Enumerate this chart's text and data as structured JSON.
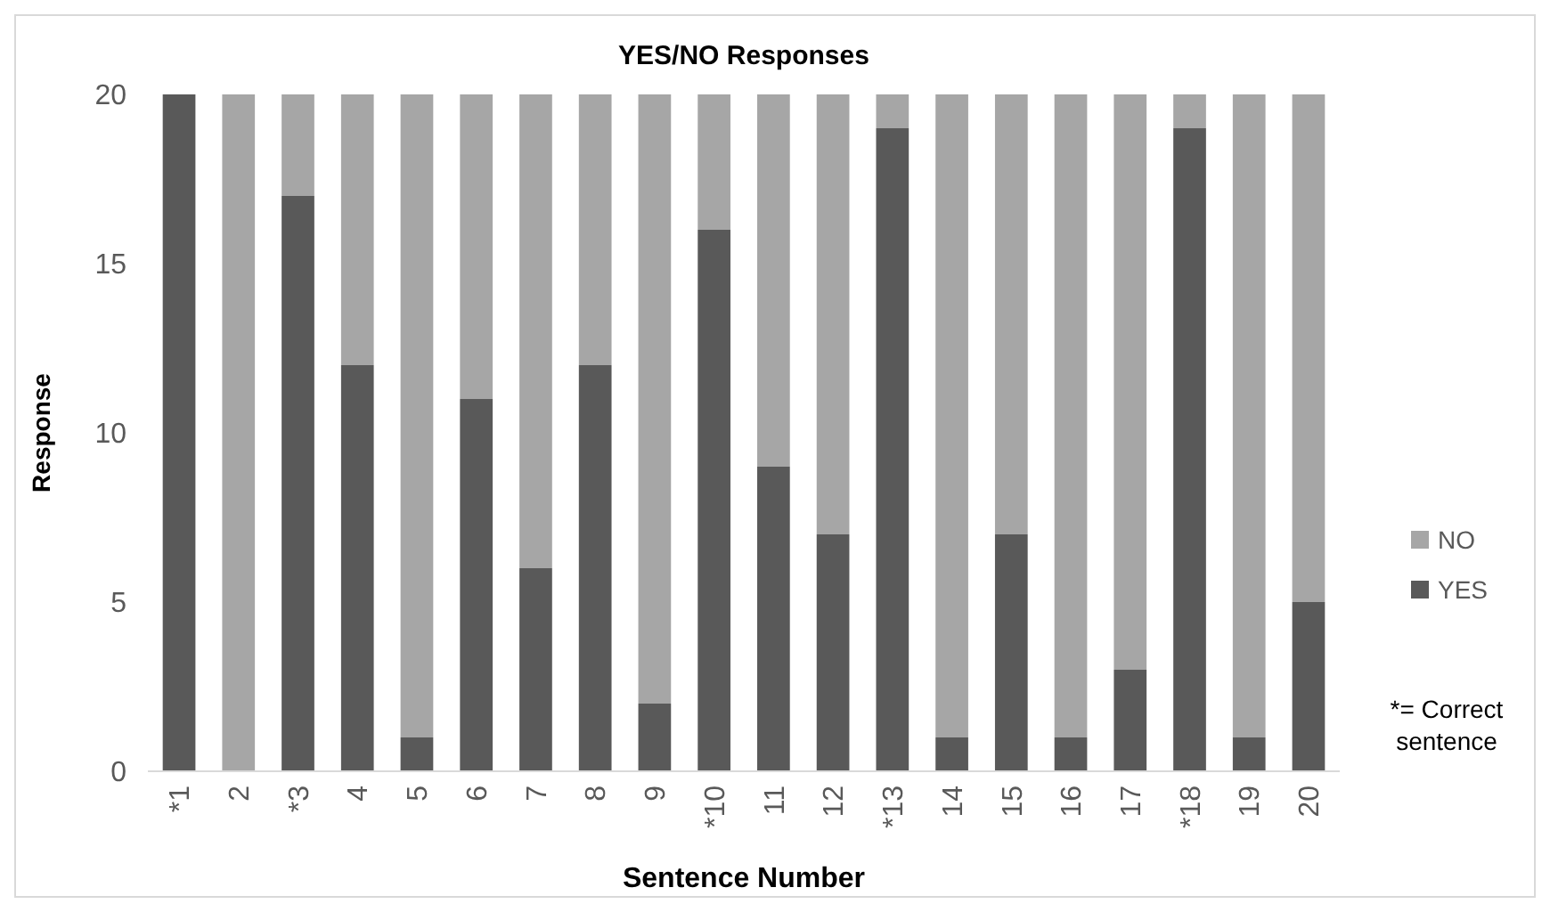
{
  "chart_data": {
    "type": "bar",
    "title": "YES/NO Responses",
    "xlabel": "Sentence Number",
    "ylabel": "Response",
    "categories": [
      "*1",
      "2",
      "*3",
      "4",
      "5",
      "6",
      "7",
      "8",
      "9",
      "*10",
      "11",
      "12",
      "*13",
      "14",
      "15",
      "16",
      "17",
      "*18",
      "19",
      "20"
    ],
    "stacked": true,
    "series": [
      {
        "name": "YES",
        "color": "#595959",
        "values": [
          20,
          0,
          17,
          12,
          1,
          11,
          6,
          12,
          2,
          16,
          9,
          7,
          19,
          1,
          7,
          1,
          3,
          19,
          1,
          5
        ]
      },
      {
        "name": "NO",
        "color": "#a6a6a6",
        "values": [
          0,
          20,
          3,
          8,
          19,
          9,
          14,
          8,
          18,
          4,
          11,
          13,
          1,
          19,
          13,
          19,
          17,
          1,
          19,
          15
        ]
      }
    ],
    "ylim": [
      0,
      20
    ],
    "yticks": [
      0,
      5,
      10,
      15,
      20
    ],
    "legend": "right",
    "annotations": [
      "*= Correct sentence"
    ]
  }
}
